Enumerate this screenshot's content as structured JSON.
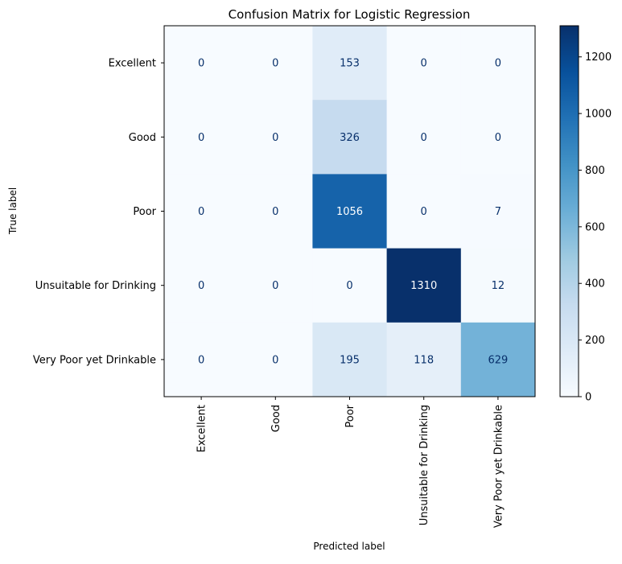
{
  "chart_data": {
    "type": "heatmap",
    "title": "Confusion Matrix for Logistic Regression",
    "xlabel": "Predicted label",
    "ylabel": "True label",
    "x_categories": [
      "Excellent",
      "Good",
      "Poor",
      "Unsuitable for Drinking",
      "Very Poor yet Drinkable"
    ],
    "y_categories": [
      "Excellent",
      "Good",
      "Poor",
      "Unsuitable for Drinking",
      "Very Poor yet Drinkable"
    ],
    "matrix": [
      [
        0,
        0,
        153,
        0,
        0
      ],
      [
        0,
        0,
        326,
        0,
        0
      ],
      [
        0,
        0,
        1056,
        0,
        7
      ],
      [
        0,
        0,
        0,
        1310,
        12
      ],
      [
        0,
        0,
        195,
        118,
        629
      ]
    ],
    "colormap": "Blues",
    "colorbar": {
      "range": [
        0,
        1310
      ],
      "ticks": [
        0,
        200,
        400,
        600,
        800,
        1000,
        1200
      ]
    },
    "colors": {
      "text_on_light": "#08306b",
      "text_on_dark": "#ffffff"
    }
  }
}
